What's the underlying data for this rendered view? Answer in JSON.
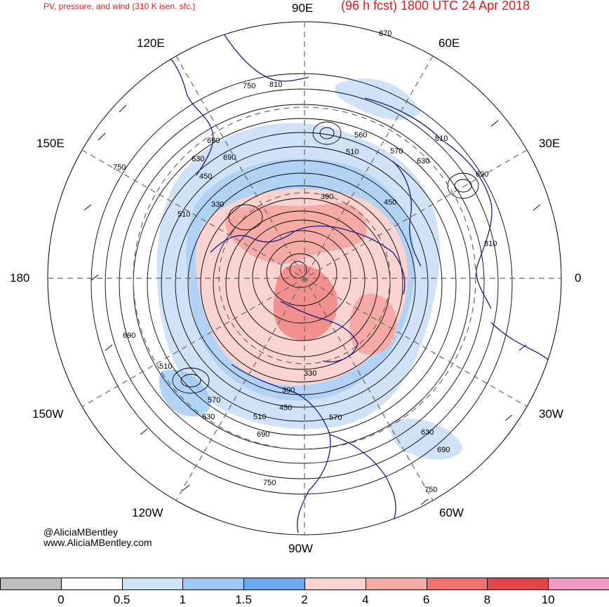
{
  "header": {
    "left_title": "PV, pressure, and wind (310 K isen. sfc.)",
    "right_title": "(96 h fcst) 1800 UTC 24 Apr 2018"
  },
  "longitude_labels": {
    "n90e": "90E",
    "n120e": "120E",
    "n60e": "60E",
    "n150e": "150E",
    "n30e": "30E",
    "n180": "180",
    "n0": "0",
    "n150w": "150W",
    "n30w": "30W",
    "n120w": "120W",
    "n60w": "60W",
    "n90w": "90W"
  },
  "contour_labels": [
    "870",
    "750",
    "810",
    "690",
    "630",
    "750",
    "690",
    "510",
    "330",
    "450",
    "390",
    "560",
    "570",
    "810",
    "630",
    "690",
    "450",
    "510",
    "810",
    "690",
    "510",
    "570",
    "630",
    "390",
    "330",
    "450",
    "510",
    "570",
    "690",
    "750",
    "630",
    "690",
    "750"
  ],
  "credits": {
    "handle": "@AliciaMBentley",
    "website": "www.AliciaMBentley.com"
  },
  "colorbar": {
    "colors": [
      "#bdbdbd",
      "#ffffff",
      "#cfe2f8",
      "#9ec8f3",
      "#6aaaf0",
      "#f9d3cf",
      "#f5aaa5",
      "#ee7474",
      "#e04646",
      "#f09ac7"
    ],
    "ticks": [
      "0",
      "0.5",
      "1",
      "1.5",
      "2",
      "4",
      "6",
      "8",
      "10"
    ]
  },
  "map_colors": {
    "pv_low": "#cfe2f8",
    "pv_mid": "#9ec8f3",
    "pv_high": "#f5aaa5",
    "pv_max": "#ee7474",
    "coast": "#1a1a8c",
    "contour": "#000000",
    "grid": "#666666"
  }
}
